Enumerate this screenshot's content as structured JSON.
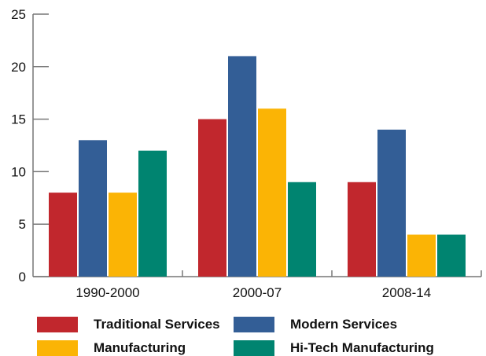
{
  "chart_data": {
    "type": "bar",
    "title": "",
    "xlabel": "",
    "ylabel": "",
    "categories": [
      "1990-2000",
      "2000-07",
      "2008-14"
    ],
    "ylim": [
      0,
      25
    ],
    "yticks": [
      0,
      5,
      10,
      15,
      20,
      25
    ],
    "grid": false,
    "legend_position": "bottom",
    "series": [
      {
        "name": "Traditional Services",
        "color": "#c1272d",
        "values": [
          8,
          15,
          9
        ]
      },
      {
        "name": "Modern Services",
        "color": "#335e96",
        "values": [
          13,
          21,
          14
        ]
      },
      {
        "name": "Manufacturing",
        "color": "#fbb405",
        "values": [
          8,
          16,
          4
        ]
      },
      {
        "name": "Hi-Tech Manufacturing",
        "color": "#008470",
        "values": [
          12,
          9,
          4
        ]
      }
    ]
  }
}
